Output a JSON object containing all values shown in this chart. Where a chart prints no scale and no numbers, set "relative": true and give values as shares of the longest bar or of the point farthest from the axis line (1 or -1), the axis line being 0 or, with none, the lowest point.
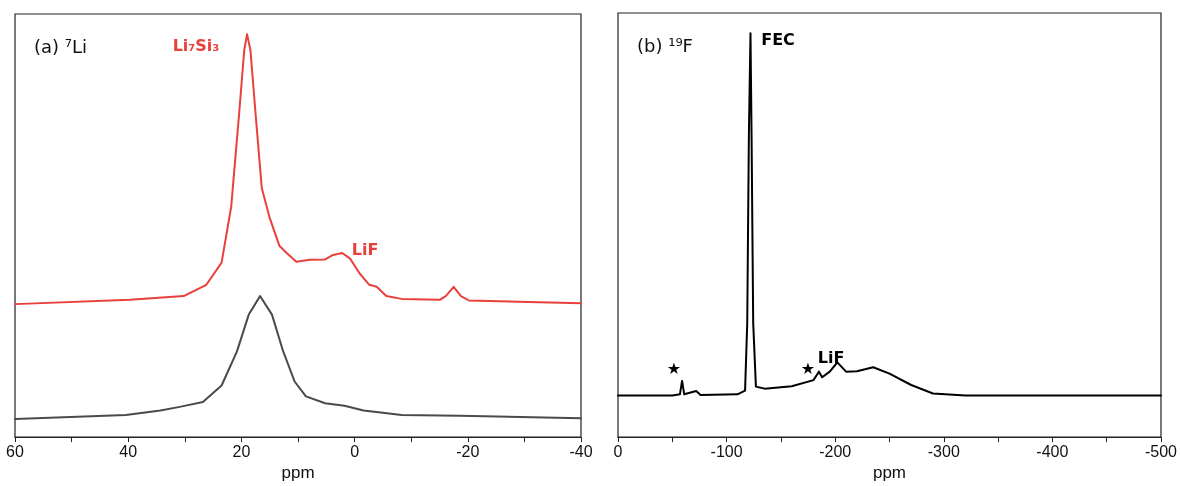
{
  "chart_data": [
    {
      "type": "line",
      "title": "(a) ⁷Li",
      "xlabel": "ppm",
      "relative": true,
      "xlim": [
        60,
        -40
      ],
      "xticks": [
        60,
        {
          "value": 50,
          "label": null
        },
        40,
        {
          "value": 30,
          "label": null
        },
        20,
        {
          "value": 10,
          "label": null
        },
        0,
        {
          "value": -10,
          "label": null
        },
        -20,
        {
          "value": -30,
          "label": null
        },
        -40
      ],
      "grid": false,
      "marker": "none",
      "line_style": "solid",
      "series": [
        {
          "color": "#e8413c",
          "x": [
            60,
            39.7,
            30.2,
            26.2,
            23.5,
            21.8,
            20.4,
            19.5,
            19.0,
            18.4,
            17.5,
            16.4,
            15.0,
            13.3,
            12.0,
            10.3,
            7.9,
            5.2,
            3.8,
            2.2,
            0.8,
            -0.9,
            -2.6,
            -3.9,
            -5.6,
            -8.3,
            -15.1,
            -16.1,
            -17.5,
            -18.8,
            -20.2,
            -40
          ],
          "values": [
            0.33,
            0.341,
            0.35,
            0.378,
            0.433,
            0.572,
            0.803,
            0.96,
            1.0,
            0.96,
            0.803,
            0.618,
            0.544,
            0.475,
            0.457,
            0.435,
            0.44,
            0.441,
            0.452,
            0.457,
            0.443,
            0.406,
            0.378,
            0.373,
            0.35,
            0.343,
            0.341,
            0.35,
            0.373,
            0.35,
            0.339,
            0.332
          ]
        },
        {
          "color": "#4a4a4a",
          "x": [
            60,
            40.4,
            34.3,
            30.9,
            26.8,
            23.5,
            20.8,
            18.7,
            16.7,
            14.6,
            12.6,
            10.6,
            8.6,
            5.2,
            1.8,
            -1.6,
            -8.3,
            -18.5,
            -40
          ],
          "values": [
            0.045,
            0.055,
            0.066,
            0.075,
            0.087,
            0.128,
            0.212,
            0.304,
            0.35,
            0.304,
            0.212,
            0.138,
            0.101,
            0.084,
            0.078,
            0.066,
            0.055,
            0.053,
            0.047
          ]
        }
      ],
      "annotations": [
        "Li₇Si₃",
        "LiF"
      ]
    },
    {
      "type": "line",
      "title": "(b) ¹⁹F",
      "xlabel": "ppm",
      "relative": true,
      "xlim": [
        0,
        -500
      ],
      "xticks": [
        0,
        {
          "value": -50,
          "label": null
        },
        -100,
        {
          "value": -150,
          "label": null
        },
        -200,
        {
          "value": -250,
          "label": null
        },
        -300,
        {
          "value": -350,
          "label": null
        },
        -400,
        {
          "value": -450,
          "label": null
        },
        -500
      ],
      "grid": false,
      "marker": "none",
      "line_style": "solid",
      "series": [
        {
          "color": "#000000",
          "x": [
            0,
            -50,
            -57,
            -59,
            -61,
            -72,
            -76,
            -110,
            -117,
            -119,
            -120.5,
            -122,
            -123,
            -124.5,
            -127,
            -135,
            -160,
            -180,
            -185,
            -188,
            -195,
            -202,
            -210,
            -220,
            -235,
            -250,
            -270,
            -290,
            -320,
            -500
          ],
          "values": [
            0.103,
            0.103,
            0.106,
            0.139,
            0.106,
            0.114,
            0.104,
            0.106,
            0.115,
            0.282,
            0.743,
            1.0,
            0.743,
            0.282,
            0.125,
            0.12,
            0.126,
            0.141,
            0.162,
            0.148,
            0.162,
            0.185,
            0.162,
            0.163,
            0.173,
            0.157,
            0.129,
            0.108,
            0.103,
            0.103
          ]
        }
      ],
      "annotations": [
        "FEC",
        "LiF",
        "★",
        "★"
      ]
    }
  ]
}
